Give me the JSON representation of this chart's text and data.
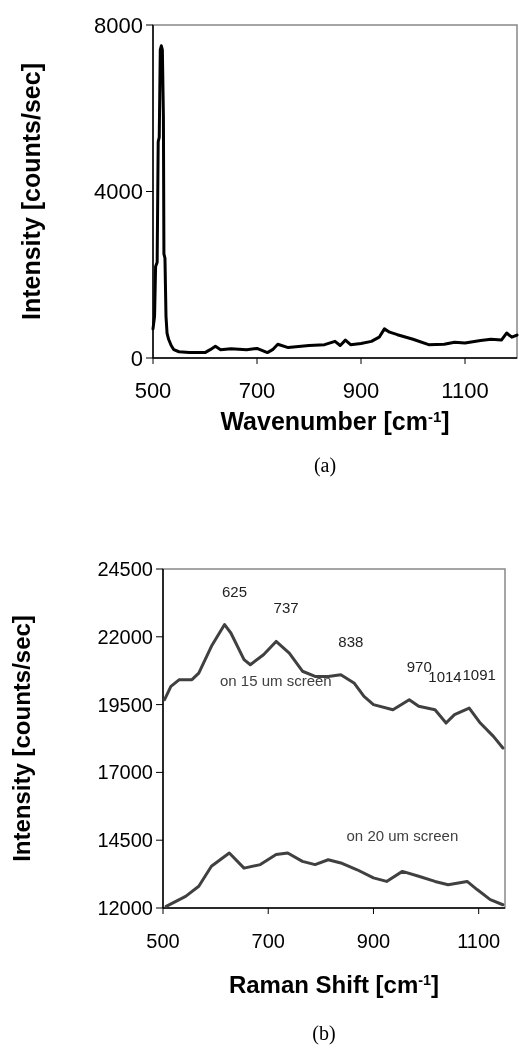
{
  "chart_data": [
    {
      "type": "line",
      "title": "(a)",
      "xlabel": "Wavenumber [cm$^{-1}$]",
      "ylabel": "Intensity [counts/sec]",
      "xlim": [
        500,
        1200
      ],
      "xticks": [
        500,
        700,
        900,
        1100
      ],
      "ylim": [
        0,
        8000
      ],
      "yticks": [
        0,
        4000,
        8000
      ],
      "grid": false,
      "series": [
        {
          "color": "#000000",
          "x": [
            500,
            503,
            505,
            508,
            510,
            512,
            514,
            516,
            518,
            520,
            521,
            523,
            525,
            527,
            530,
            535,
            540,
            550,
            570,
            600,
            610,
            620,
            630,
            650,
            680,
            700,
            720,
            730,
            740,
            760,
            800,
            830,
            850,
            860,
            870,
            880,
            900,
            920,
            935,
            945,
            955,
            970,
            1000,
            1030,
            1060,
            1080,
            1100,
            1130,
            1150,
            1170,
            1180,
            1190,
            1200
          ],
          "values": [
            700,
            1000,
            2200,
            2300,
            5200,
            5300,
            7400,
            7500,
            7400,
            5800,
            2500,
            2400,
            1000,
            600,
            450,
            300,
            200,
            150,
            130,
            130,
            200,
            280,
            200,
            220,
            200,
            230,
            130,
            200,
            330,
            250,
            300,
            320,
            400,
            300,
            430,
            320,
            350,
            400,
            500,
            700,
            620,
            560,
            450,
            320,
            330,
            380,
            360,
            420,
            450,
            430,
            600,
            500,
            550
          ]
        }
      ]
    },
    {
      "type": "line",
      "title": "(b)",
      "xlabel": "Raman Shift [cm$^{-1}$]",
      "ylabel": "Intensity [counts/sec]",
      "xlim": [
        500,
        1150
      ],
      "xticks": [
        500,
        700,
        900,
        1100
      ],
      "ylim": [
        12000,
        24500
      ],
      "yticks": [
        12000,
        14500,
        17000,
        19500,
        22000,
        24500
      ],
      "grid": false,
      "annotations": [
        {
          "text": "625",
          "x": 617,
          "y": 22450
        },
        {
          "text": "737",
          "x": 715,
          "y": 21830
        },
        {
          "text": "838",
          "x": 838,
          "y": 20600
        },
        {
          "text": "970",
          "x": 968,
          "y": 19680
        },
        {
          "text": "1014",
          "x": 1017,
          "y": 19310
        },
        {
          "text": "1091",
          "x": 1082,
          "y": 19370
        }
      ],
      "series": [
        {
          "name": "on 15 um screen",
          "color": "#404040",
          "x": [
            503,
            515,
            531,
            555,
            568,
            592,
            617,
            629,
            654,
            666,
            691,
            715,
            740,
            765,
            789,
            814,
            838,
            863,
            882,
            900,
            937,
            968,
            986,
            1017,
            1038,
            1054,
            1082,
            1103,
            1128,
            1146
          ],
          "values": [
            19680,
            20170,
            20420,
            20420,
            20660,
            21650,
            22450,
            22140,
            21160,
            20970,
            21340,
            21830,
            21400,
            20730,
            20540,
            20540,
            20600,
            20300,
            19800,
            19500,
            19310,
            19680,
            19440,
            19310,
            18820,
            19130,
            19370,
            18820,
            18330,
            17900
          ]
        },
        {
          "name": "on 20 um screen",
          "color": "#404040",
          "x": [
            506,
            543,
            568,
            592,
            626,
            654,
            685,
            715,
            737,
            765,
            789,
            814,
            838,
            869,
            900,
            925,
            955,
            986,
            1017,
            1042,
            1078,
            1097,
            1122,
            1146
          ],
          "values": [
            12060,
            12430,
            12800,
            13540,
            14030,
            13470,
            13600,
            13970,
            14030,
            13720,
            13600,
            13780,
            13660,
            13410,
            13110,
            12980,
            13350,
            13170,
            12980,
            12860,
            12980,
            12680,
            12310,
            12120
          ]
        }
      ]
    }
  ]
}
